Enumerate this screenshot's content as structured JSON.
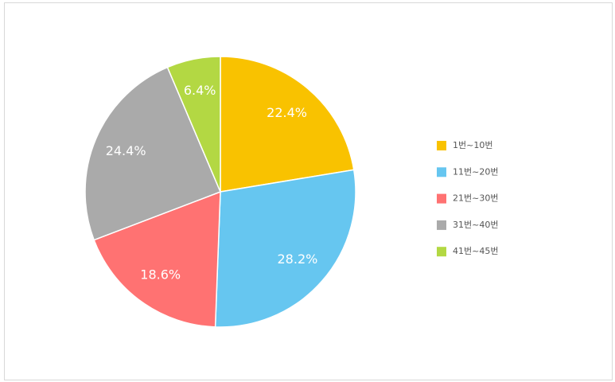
{
  "chart_data": {
    "type": "pie",
    "categories": [
      "1번~10번",
      "11번~20번",
      "21번~30번",
      "31번~40번",
      "41번~45번"
    ],
    "values": [
      22.4,
      28.2,
      18.6,
      24.4,
      6.4
    ],
    "value_labels": [
      "22.4%",
      "28.2%",
      "18.6%",
      "24.4%",
      "6.4%"
    ],
    "colors": [
      "#f9c200",
      "#66c6f0",
      "#ff7272",
      "#aaaaaa",
      "#b3d843"
    ],
    "legend": "right"
  }
}
